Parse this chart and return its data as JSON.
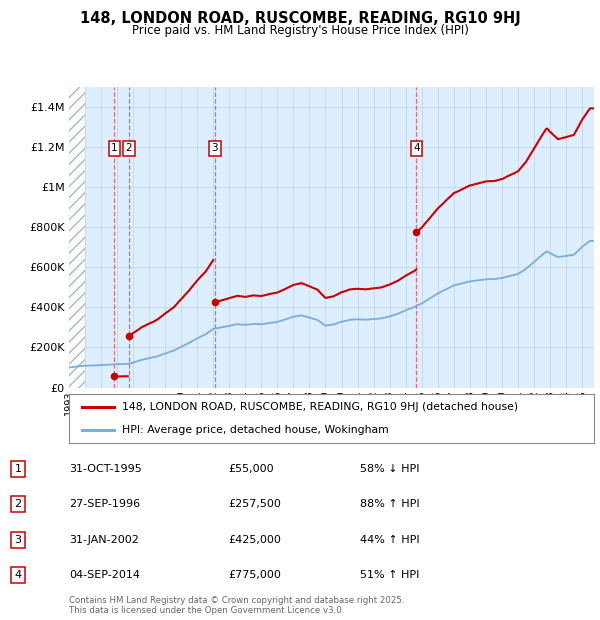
{
  "title_line1": "148, LONDON ROAD, RUSCOMBE, READING, RG10 9HJ",
  "title_line2": "Price paid vs. HM Land Registry's House Price Index (HPI)",
  "property_label": "148, LONDON ROAD, RUSCOMBE, READING, RG10 9HJ (detached house)",
  "hpi_label": "HPI: Average price, detached house, Wokingham",
  "property_color": "#cc0000",
  "hpi_color": "#7aade0",
  "transactions": [
    {
      "id": 1,
      "date": "1995-10-31",
      "price": 55000
    },
    {
      "id": 2,
      "date": "1996-09-27",
      "price": 257500
    },
    {
      "id": 3,
      "date": "2002-01-31",
      "price": 425000
    },
    {
      "id": 4,
      "date": "2014-09-04",
      "price": 775000
    }
  ],
  "table_rows": [
    {
      "id": 1,
      "date_str": "31-OCT-1995",
      "price_str": "£55,000",
      "pct_str": "58% ↓ HPI"
    },
    {
      "id": 2,
      "date_str": "27-SEP-1996",
      "price_str": "£257,500",
      "pct_str": "88% ↑ HPI"
    },
    {
      "id": 3,
      "date_str": "31-JAN-2002",
      "price_str": "£425,000",
      "pct_str": "44% ↑ HPI"
    },
    {
      "id": 4,
      "date_str": "04-SEP-2014",
      "price_str": "£775,000",
      "pct_str": "51% ↑ HPI"
    }
  ],
  "footer": "Contains HM Land Registry data © Crown copyright and database right 2025.\nThis data is licensed under the Open Government Licence v3.0.",
  "ylim": [
    0,
    1500000
  ],
  "yticks": [
    0,
    200000,
    400000,
    600000,
    800000,
    1000000,
    1200000,
    1400000
  ],
  "grid_color": "#c8daea",
  "background_color": "#ddeeff",
  "hatch_end_year": 1994.0,
  "xmin": 1993.0,
  "xmax": 2025.75
}
